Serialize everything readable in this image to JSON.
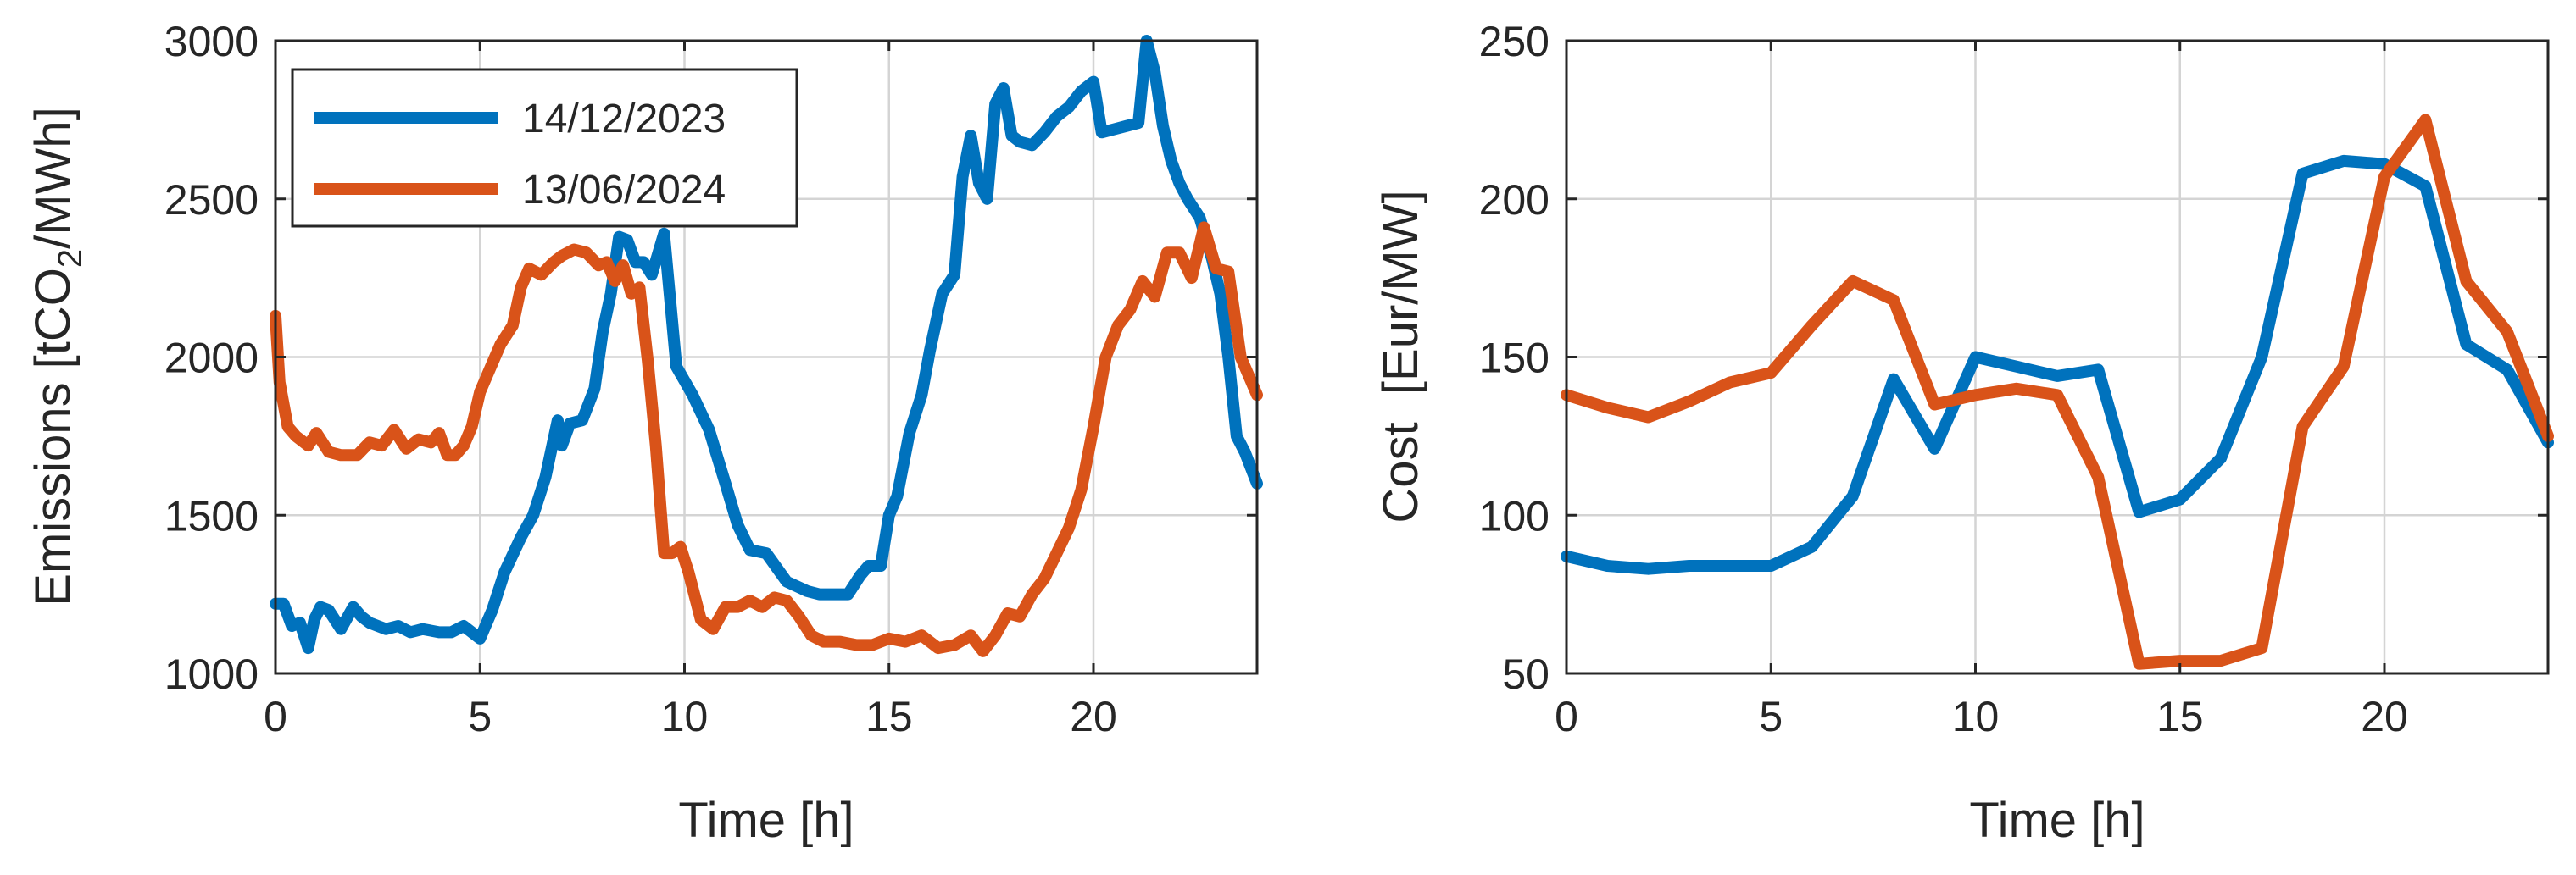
{
  "chart_data": [
    {
      "type": "line",
      "ylabel_main": "Emissions [tCO",
      "ylabel_sub": "2",
      "ylabel_rest": "/MWh]",
      "xlabel": "Time [h]",
      "xlim": [
        0,
        24
      ],
      "ylim": [
        1000,
        3000
      ],
      "xticks": [
        "0",
        "5",
        "10",
        "15",
        "20"
      ],
      "yticks": [
        "1000",
        "1500",
        "2000",
        "2500",
        "3000"
      ],
      "legend": "top-left",
      "series": [
        {
          "name": "14/12/2023",
          "color": "#0072BD",
          "x": [
            0,
            0.2,
            0.4,
            0.6,
            0.8,
            0.95,
            1.1,
            1.3,
            1.6,
            1.9,
            2.1,
            2.3,
            2.5,
            2.7,
            3,
            3.3,
            3.6,
            4,
            4.3,
            4.6,
            5,
            5.3,
            5.6,
            6,
            6.3,
            6.6,
            6.9,
            7,
            7.2,
            7.5,
            7.8,
            8,
            8.2,
            8.4,
            8.6,
            8.8,
            9,
            9.2,
            9.5,
            9.8,
            10.2,
            10.6,
            11,
            11.3,
            11.6,
            12,
            12.5,
            13,
            13.3,
            13.6,
            14,
            14.3,
            14.5,
            14.8,
            15,
            15.2,
            15.5,
            15.8,
            16,
            16.3,
            16.6,
            16.8,
            17,
            17.2,
            17.4,
            17.6,
            17.8,
            18,
            18.2,
            18.5,
            18.8,
            19.1,
            19.4,
            19.7,
            20,
            20.2,
            20.5,
            20.8,
            21.1,
            21.3,
            21.5,
            21.7,
            21.9,
            22.1,
            22.3,
            22.6,
            22.9,
            23.1,
            23.3,
            23.5,
            23.7,
            24
          ],
          "y": [
            1220,
            1220,
            1150,
            1160,
            1080,
            1170,
            1210,
            1200,
            1140,
            1210,
            1180,
            1160,
            1150,
            1140,
            1150,
            1130,
            1140,
            1130,
            1130,
            1150,
            1110,
            1200,
            1320,
            1430,
            1500,
            1620,
            1800,
            1720,
            1790,
            1800,
            1900,
            2080,
            2200,
            2380,
            2370,
            2300,
            2300,
            2260,
            2390,
            1970,
            1880,
            1770,
            1600,
            1470,
            1390,
            1380,
            1290,
            1260,
            1250,
            1250,
            1250,
            1310,
            1340,
            1340,
            1500,
            1560,
            1760,
            1880,
            2020,
            2200,
            2260,
            2570,
            2700,
            2550,
            2500,
            2800,
            2850,
            2700,
            2680,
            2670,
            2710,
            2760,
            2790,
            2840,
            2870,
            2710,
            2720,
            2730,
            2740,
            3000,
            2900,
            2730,
            2620,
            2550,
            2500,
            2440,
            2310,
            2200,
            2000,
            1750,
            1700,
            1600
          ]
        },
        {
          "name": "13/06/2024",
          "color": "#D95319",
          "x": [
            0,
            0.1,
            0.3,
            0.5,
            0.8,
            1,
            1.3,
            1.6,
            2,
            2.3,
            2.6,
            2.9,
            3.2,
            3.5,
            3.8,
            4,
            4.2,
            4.4,
            4.6,
            4.8,
            5,
            5.2,
            5.5,
            5.8,
            6,
            6.2,
            6.5,
            6.8,
            7,
            7.3,
            7.6,
            7.9,
            8.1,
            8.3,
            8.5,
            8.7,
            8.9,
            9.1,
            9.3,
            9.5,
            9.7,
            9.9,
            10.1,
            10.4,
            10.7,
            11,
            11.3,
            11.6,
            11.9,
            12.2,
            12.5,
            12.8,
            13.1,
            13.4,
            13.8,
            14.2,
            14.6,
            15,
            15.4,
            15.8,
            16.2,
            16.6,
            17,
            17.3,
            17.6,
            17.9,
            18.2,
            18.5,
            18.8,
            19.1,
            19.4,
            19.7,
            20,
            20.3,
            20.6,
            20.9,
            21.2,
            21.5,
            21.8,
            22.1,
            22.4,
            22.7,
            23,
            23.3,
            23.6,
            24
          ],
          "y": [
            2130,
            1920,
            1780,
            1750,
            1720,
            1760,
            1700,
            1690,
            1690,
            1730,
            1720,
            1770,
            1710,
            1740,
            1730,
            1760,
            1690,
            1690,
            1720,
            1780,
            1890,
            1950,
            2040,
            2100,
            2220,
            2280,
            2260,
            2300,
            2320,
            2340,
            2330,
            2290,
            2300,
            2240,
            2290,
            2200,
            2220,
            1990,
            1720,
            1380,
            1380,
            1400,
            1320,
            1170,
            1140,
            1210,
            1210,
            1230,
            1210,
            1240,
            1230,
            1180,
            1120,
            1100,
            1100,
            1090,
            1090,
            1110,
            1100,
            1120,
            1080,
            1090,
            1120,
            1070,
            1120,
            1190,
            1180,
            1250,
            1300,
            1380,
            1460,
            1580,
            1780,
            2000,
            2100,
            2150,
            2240,
            2190,
            2330,
            2330,
            2250,
            2410,
            2280,
            2270,
            2000,
            1880
          ]
        }
      ]
    },
    {
      "type": "line",
      "ylabel": "Cost  [Eur/MW]",
      "xlabel": "Time [h]",
      "xlim": [
        0,
        24
      ],
      "ylim": [
        50,
        250
      ],
      "xticks": [
        "0",
        "5",
        "10",
        "15",
        "20"
      ],
      "yticks": [
        "50",
        "100",
        "150",
        "200",
        "250"
      ],
      "series": [
        {
          "name": "14/12/2023",
          "color": "#0072BD",
          "x": [
            0,
            1,
            2,
            3,
            4,
            5,
            6,
            7,
            8,
            9,
            10,
            11,
            12,
            13,
            14,
            15,
            16,
            17,
            18,
            19,
            20,
            21,
            22,
            23,
            24
          ],
          "y": [
            87,
            84,
            83,
            84,
            84,
            84,
            90,
            106,
            143,
            121,
            150,
            147,
            144,
            146,
            101,
            105,
            118,
            150,
            208,
            212,
            211,
            204,
            154,
            146,
            123
          ]
        },
        {
          "name": "13/06/2024",
          "color": "#D95319",
          "x": [
            0,
            1,
            2,
            3,
            4,
            5,
            6,
            7,
            8,
            9,
            10,
            11,
            12,
            13,
            14,
            15,
            16,
            17,
            18,
            19,
            20,
            21,
            22,
            23,
            24
          ],
          "y": [
            138,
            134,
            131,
            136,
            142,
            145,
            160,
            174,
            168,
            135,
            138,
            140,
            138,
            112,
            53,
            54,
            54,
            58,
            128,
            147,
            207,
            225,
            174,
            158,
            125
          ]
        }
      ]
    }
  ]
}
